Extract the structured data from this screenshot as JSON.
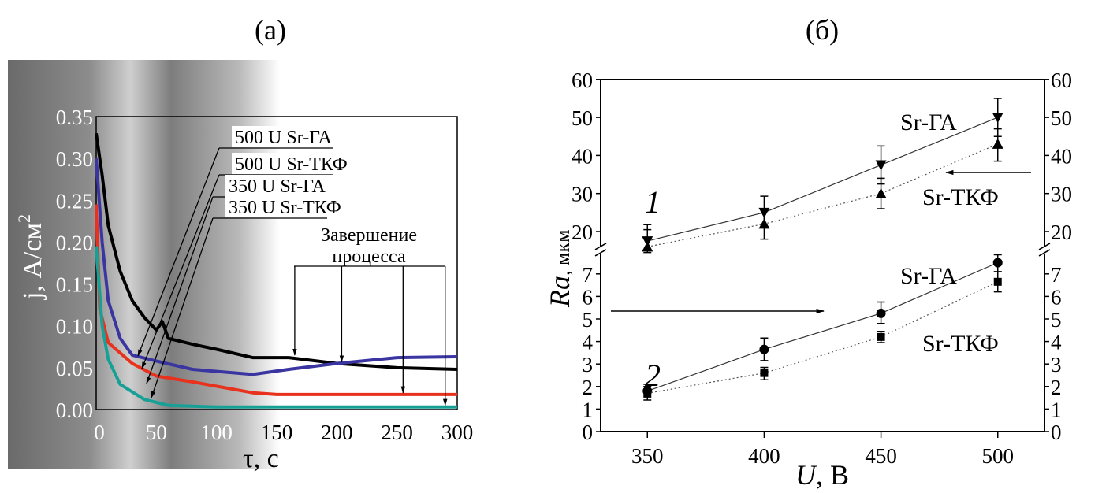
{
  "chart_data": [
    {
      "panel_label": "(а)",
      "type": "line",
      "xlabel": "τ, с",
      "ylabel": "j, А/см",
      "ylabel_superscript": "2",
      "xlim": [
        0,
        300
      ],
      "ylim": [
        0,
        0.35
      ],
      "xticks": [
        "0",
        "50",
        "100",
        "150",
        "200",
        "250",
        "300"
      ],
      "yticks": [
        "0.00",
        "0.05",
        "0.10",
        "0.15",
        "0.20",
        "0.25",
        "0.30",
        "0.35"
      ],
      "background": "grayscale micrograph",
      "annotation": [
        "Завершение",
        "процесса"
      ],
      "series": [
        {
          "name": "500 U Sr-ГА",
          "color": "#000000",
          "x": [
            0,
            5,
            10,
            20,
            30,
            40,
            50,
            55,
            60,
            80,
            100,
            130,
            160,
            200,
            250,
            300
          ],
          "y": [
            0.33,
            0.28,
            0.22,
            0.165,
            0.13,
            0.11,
            0.095,
            0.105,
            0.085,
            0.078,
            0.072,
            0.062,
            0.062,
            0.055,
            0.05,
            0.048
          ]
        },
        {
          "name": "500 U Sr-ТКФ",
          "color": "#3a35a0",
          "x": [
            0,
            5,
            10,
            20,
            30,
            50,
            80,
            130,
            160,
            200,
            250,
            300
          ],
          "y": [
            0.3,
            0.2,
            0.13,
            0.085,
            0.065,
            0.058,
            0.048,
            0.042,
            0.048,
            0.055,
            0.062,
            0.063
          ]
        },
        {
          "name": "350 U Sr-ГА",
          "color": "#e8321e",
          "x": [
            0,
            3,
            10,
            30,
            50,
            80,
            130,
            150,
            300
          ],
          "y": [
            0.245,
            0.12,
            0.08,
            0.055,
            0.04,
            0.033,
            0.02,
            0.018,
            0.018
          ]
        },
        {
          "name": "350 U Sr-ТКФ",
          "color": "#17a096",
          "x": [
            0,
            5,
            10,
            20,
            40,
            60,
            100,
            300
          ],
          "y": [
            0.195,
            0.1,
            0.06,
            0.03,
            0.012,
            0.005,
            0.003,
            0.003
          ]
        }
      ]
    },
    {
      "panel_label": "(б)",
      "type": "scatter",
      "xlabel": "U, В",
      "ylabel": "Ra, мкм",
      "xlim": [
        330,
        520
      ],
      "xticks": [
        "350",
        "400",
        "450",
        "500"
      ],
      "broken_axis": true,
      "upper_ylim": [
        16.5,
        60
      ],
      "upper_yticks": [
        "20",
        "30",
        "40",
        "50",
        "60"
      ],
      "lower_ylim": [
        0,
        7.8
      ],
      "lower_yticks": [
        "0",
        "1",
        "2",
        "3",
        "4",
        "5",
        "6",
        "7"
      ],
      "group_labels": [
        "1",
        "2"
      ],
      "series": [
        {
          "name": "Sr-ГА",
          "group": "1",
          "marker": "triangle-down",
          "line": "solid",
          "x": [
            350,
            400,
            450,
            500
          ],
          "y": [
            17.5,
            25,
            37.5,
            50
          ],
          "err_low": [
            14.5,
            21,
            32.5,
            45
          ],
          "err_high": [
            20.5,
            29.3,
            42.5,
            55
          ]
        },
        {
          "name": "Sr-ТКФ",
          "group": "1",
          "marker": "triangle-up",
          "line": "dotted",
          "x": [
            350,
            400,
            450,
            500
          ],
          "y": [
            16,
            22,
            30,
            43
          ],
          "err_low": [
            15,
            18,
            26,
            38.5
          ],
          "err_high": [
            21.8,
            26,
            34,
            47
          ]
        },
        {
          "name": "Sr-ГА",
          "group": "2",
          "marker": "circle",
          "line": "solid",
          "x": [
            350,
            400,
            450,
            500
          ],
          "y": [
            1.8,
            3.65,
            5.25,
            7.5
          ],
          "err_low": [
            1.5,
            3.15,
            4.8,
            7.1
          ],
          "err_high": [
            2.1,
            4.15,
            5.75,
            7.85
          ]
        },
        {
          "name": "Sr-ТКФ",
          "group": "2",
          "marker": "square",
          "line": "dotted",
          "x": [
            350,
            400,
            450,
            500
          ],
          "y": [
            1.7,
            2.6,
            4.2,
            6.65
          ],
          "err_low": [
            1.4,
            2.3,
            3.95,
            6.2
          ],
          "err_high": [
            2.0,
            2.85,
            4.45,
            7.1
          ]
        }
      ]
    }
  ]
}
